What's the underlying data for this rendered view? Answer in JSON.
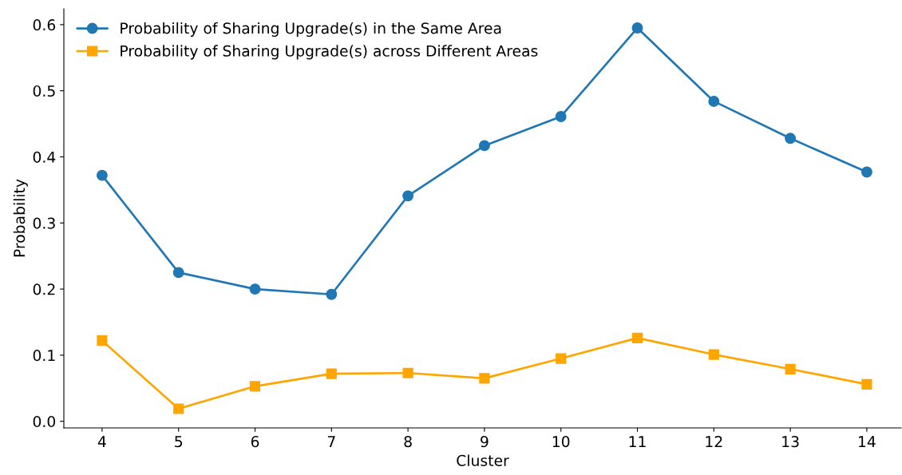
{
  "chart_data": {
    "type": "line",
    "xlabel": "Cluster",
    "ylabel": "Probability",
    "x": [
      4,
      5,
      6,
      7,
      8,
      9,
      10,
      11,
      12,
      13,
      14
    ],
    "series": [
      {
        "name": "Probability of Sharing Upgrade(s) in the Same Area",
        "color": "#1f77b4",
        "marker": "circle",
        "values": [
          0.372,
          0.225,
          0.2,
          0.192,
          0.341,
          0.417,
          0.461,
          0.595,
          0.484,
          0.428,
          0.377
        ]
      },
      {
        "name": "Probability of Sharing Upgrade(s) across Different Areas",
        "color": "#ffa500",
        "marker": "square",
        "values": [
          0.122,
          0.019,
          0.053,
          0.072,
          0.073,
          0.065,
          0.095,
          0.126,
          0.101,
          0.079,
          0.056
        ]
      }
    ],
    "xlim": [
      3.5,
      14.45
    ],
    "ylim": [
      -0.01,
      0.624
    ],
    "xticks": [
      4,
      5,
      6,
      7,
      8,
      9,
      10,
      11,
      12,
      13,
      14
    ],
    "yticks": [
      {
        "value": 0,
        "label": "0.0"
      },
      0.1,
      0.2,
      0.3,
      0.4,
      0.5,
      0.6
    ],
    "legend": "top left",
    "grid": false,
    "line_style": "solid"
  }
}
